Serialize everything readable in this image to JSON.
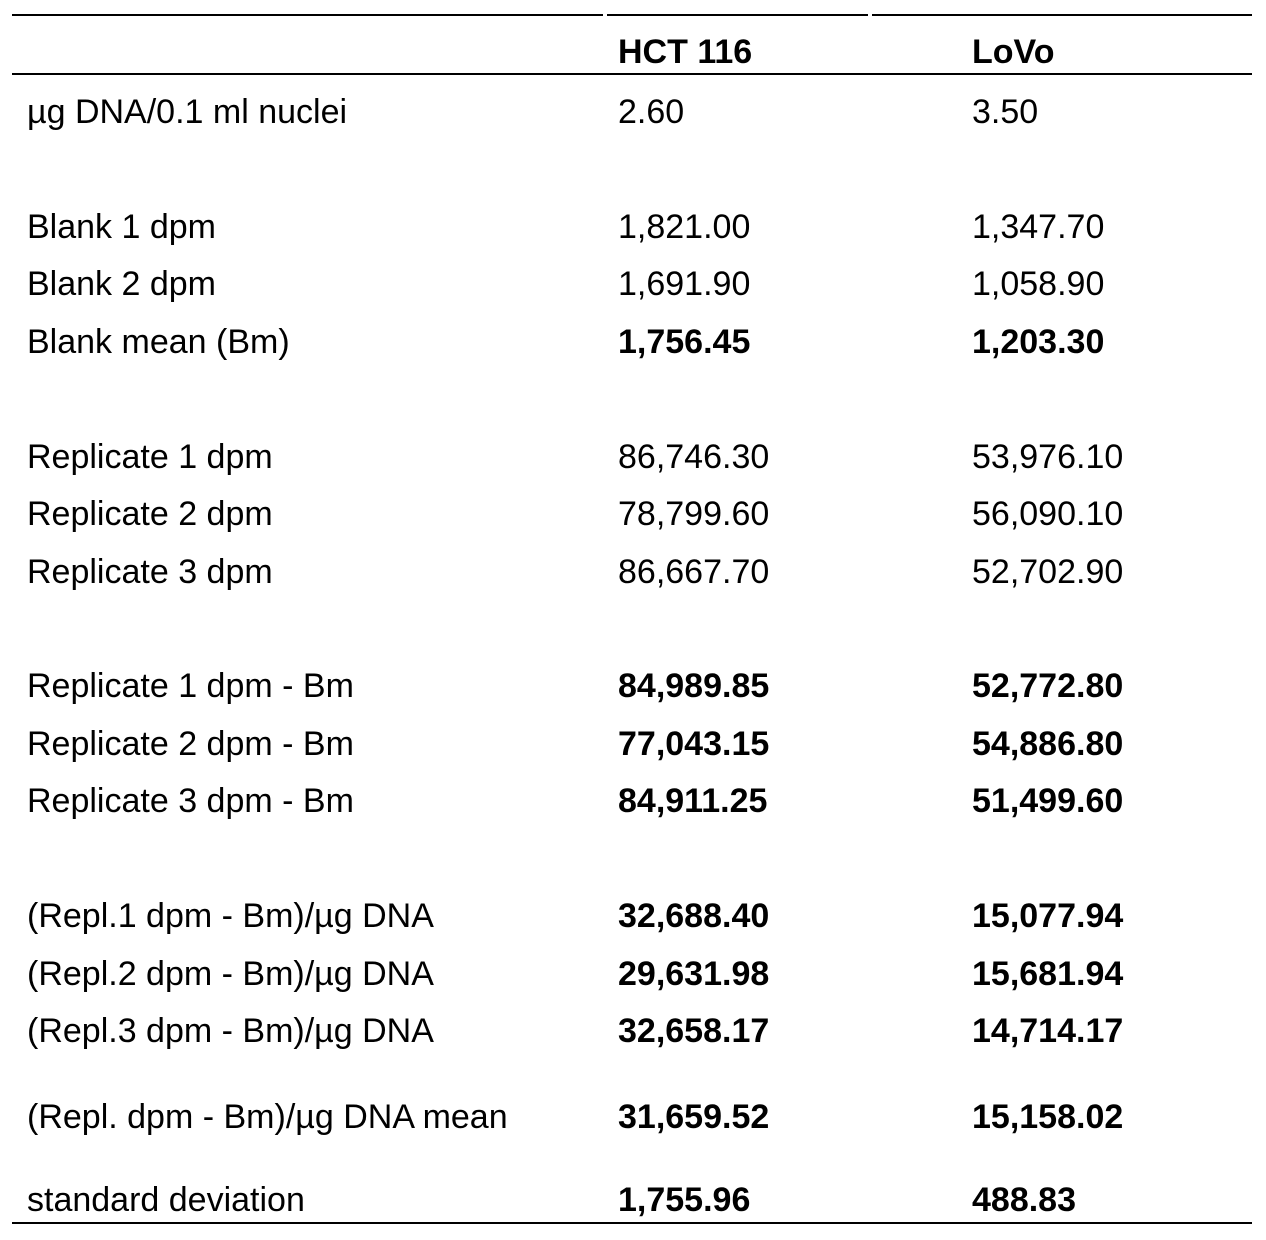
{
  "table": {
    "headers": [
      "",
      "HCT 116",
      "LoVo"
    ],
    "rows": [
      {
        "label": "µg DNA/0.1 ml nuclei",
        "hct116": "2.60",
        "lovo": "3.50",
        "bold": false
      },
      {
        "label": "Blank 1 dpm",
        "hct116": "1,821.00",
        "lovo": "1,347.70",
        "bold": false
      },
      {
        "label": "Blank 2 dpm",
        "hct116": "1,691.90",
        "lovo": "1,058.90",
        "bold": false
      },
      {
        "label": "Blank mean (Bm)",
        "hct116": "1,756.45",
        "lovo": "1,203.30",
        "bold": true
      },
      {
        "label": "Replicate 1 dpm",
        "hct116": "86,746.30",
        "lovo": "53,976.10",
        "bold": false
      },
      {
        "label": "Replicate 2 dpm",
        "hct116": "78,799.60",
        "lovo": "56,090.10",
        "bold": false
      },
      {
        "label": "Replicate 3 dpm",
        "hct116": "86,667.70",
        "lovo": "52,702.90",
        "bold": false
      },
      {
        "label": "Replicate 1 dpm - Bm",
        "hct116": "84,989.85",
        "lovo": "52,772.80",
        "bold": true
      },
      {
        "label": "Replicate 2 dpm - Bm",
        "hct116": "77,043.15",
        "lovo": "54,886.80",
        "bold": true
      },
      {
        "label": "Replicate 3 dpm - Bm",
        "hct116": "84,911.25",
        "lovo": "51,499.60",
        "bold": true
      },
      {
        "label": "(Repl.1 dpm - Bm)/µg DNA",
        "hct116": "32,688.40",
        "lovo": "15,077.94",
        "bold": true
      },
      {
        "label": "(Repl.2 dpm - Bm)/µg DNA",
        "hct116": "29,631.98",
        "lovo": "15,681.94",
        "bold": true
      },
      {
        "label": "(Repl.3 dpm - Bm)/µg DNA",
        "hct116": "32,658.17",
        "lovo": "14,714.17",
        "bold": true
      },
      {
        "label": "(Repl. dpm - Bm)/µg DNA mean",
        "hct116": "31,659.52",
        "lovo": "15,158.02",
        "bold": true
      },
      {
        "label": "standard deviation",
        "hct116": "1,755.96",
        "lovo": "488.83",
        "bold": true
      }
    ]
  }
}
